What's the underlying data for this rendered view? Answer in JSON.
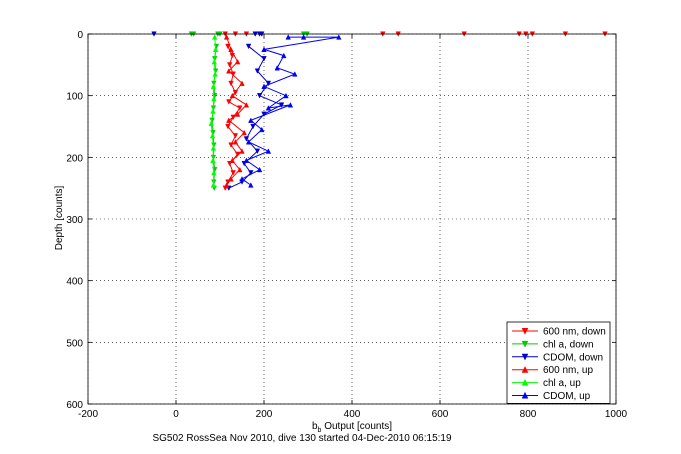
{
  "chart_data": {
    "type": "scatter",
    "title": "",
    "xlabel_main": "b",
    "xlabel_sub": "b",
    "xlabel_rest": " Output [counts]",
    "ylabel": "Depth [counts]",
    "caption": "SG502 RossSea Nov 2010, dive 130 started 04-Dec-2010 06:15:19",
    "xlim": [
      -200,
      1000
    ],
    "ylim": [
      0,
      600
    ],
    "y_reversed": true,
    "xticks": [
      -200,
      0,
      200,
      400,
      600,
      800,
      1000
    ],
    "yticks": [
      0,
      100,
      200,
      300,
      400,
      500,
      600
    ],
    "xtick_labels": [
      "-200",
      "0",
      "200",
      "400",
      "600",
      "800",
      "1000"
    ],
    "ytick_labels": [
      "0",
      "100",
      "200",
      "300",
      "400",
      "500",
      "600"
    ],
    "grid": true,
    "legend_position": "bottom-right",
    "series": [
      {
        "name": "600 nm, down",
        "color": "#ff0000",
        "marker": "triangle-down",
        "points": [
          [
            112,
            0
          ],
          [
            135,
            0
          ],
          [
            160,
            0
          ],
          [
            470,
            0
          ],
          [
            505,
            0
          ],
          [
            655,
            0
          ],
          [
            780,
            0
          ],
          [
            795,
            0
          ],
          [
            810,
            0
          ],
          [
            885,
            0
          ],
          [
            975,
            0
          ],
          [
            118,
            20
          ],
          [
            128,
            35
          ],
          [
            122,
            50
          ],
          [
            130,
            65
          ],
          [
            125,
            80
          ],
          [
            135,
            95
          ],
          [
            120,
            110
          ],
          [
            145,
            120
          ],
          [
            130,
            135
          ],
          [
            118,
            150
          ],
          [
            135,
            165
          ],
          [
            125,
            180
          ],
          [
            140,
            195
          ],
          [
            122,
            210
          ],
          [
            130,
            225
          ],
          [
            118,
            240
          ],
          [
            112,
            250
          ]
        ]
      },
      {
        "name": "chl a, down",
        "color": "#00cc00",
        "marker": "triangle-down",
        "points": [
          [
            35,
            0
          ],
          [
            40,
            0
          ],
          [
            95,
            0
          ],
          [
            100,
            0
          ],
          [
            290,
            0
          ],
          [
            298,
            0
          ],
          [
            92,
            20
          ],
          [
            88,
            40
          ],
          [
            90,
            60
          ],
          [
            86,
            80
          ],
          [
            88,
            100
          ],
          [
            85,
            120
          ],
          [
            82,
            140
          ],
          [
            84,
            160
          ],
          [
            86,
            180
          ],
          [
            85,
            200
          ],
          [
            88,
            220
          ],
          [
            86,
            240
          ],
          [
            87,
            250
          ]
        ]
      },
      {
        "name": "CDOM, down",
        "color": "#0000cc",
        "marker": "triangle-down",
        "points": [
          [
            -50,
            0
          ],
          [
            180,
            0
          ],
          [
            190,
            0
          ],
          [
            195,
            0
          ],
          [
            165,
            20
          ],
          [
            200,
            40
          ],
          [
            185,
            60
          ],
          [
            210,
            80
          ],
          [
            190,
            100
          ],
          [
            240,
            115
          ],
          [
            200,
            130
          ],
          [
            175,
            150
          ],
          [
            160,
            170
          ],
          [
            185,
            190
          ],
          [
            155,
            210
          ],
          [
            170,
            225
          ],
          [
            150,
            240
          ],
          [
            120,
            250
          ]
        ]
      },
      {
        "name": "600 nm, up",
        "color": "#ff0000",
        "marker": "triangle-up",
        "points": [
          [
            115,
            5
          ],
          [
            125,
            25
          ],
          [
            140,
            45
          ],
          [
            120,
            60
          ],
          [
            150,
            80
          ],
          [
            128,
            100
          ],
          [
            160,
            115
          ],
          [
            140,
            130
          ],
          [
            120,
            140
          ],
          [
            155,
            160
          ],
          [
            135,
            175
          ],
          [
            150,
            190
          ],
          [
            128,
            205
          ],
          [
            145,
            220
          ],
          [
            125,
            235
          ],
          [
            115,
            245
          ]
        ]
      },
      {
        "name": "chl a, up",
        "color": "#00ff00",
        "marker": "triangle-up",
        "points": [
          [
            88,
            5
          ],
          [
            90,
            25
          ],
          [
            87,
            45
          ],
          [
            89,
            65
          ],
          [
            85,
            85
          ],
          [
            86,
            105
          ],
          [
            84,
            125
          ],
          [
            80,
            145
          ],
          [
            83,
            165
          ],
          [
            85,
            185
          ],
          [
            84,
            205
          ],
          [
            86,
            225
          ],
          [
            85,
            245
          ]
        ]
      },
      {
        "name": "CDOM, up",
        "color": "#0000ff",
        "marker": "triangle-up",
        "points": [
          [
            255,
            5
          ],
          [
            290,
            5
          ],
          [
            370,
            5
          ],
          [
            200,
            25
          ],
          [
            245,
            35
          ],
          [
            230,
            55
          ],
          [
            270,
            65
          ],
          [
            200,
            85
          ],
          [
            250,
            100
          ],
          [
            210,
            120
          ],
          [
            260,
            115
          ],
          [
            170,
            140
          ],
          [
            195,
            155
          ],
          [
            165,
            175
          ],
          [
            210,
            190
          ],
          [
            160,
            205
          ],
          [
            190,
            220
          ],
          [
            150,
            235
          ],
          [
            170,
            245
          ]
        ]
      }
    ]
  }
}
